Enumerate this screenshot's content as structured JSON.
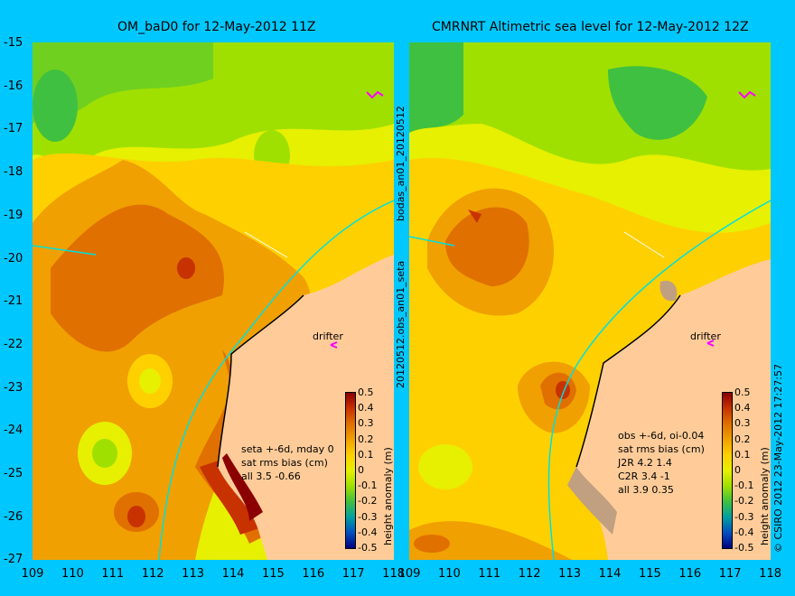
{
  "left_panel": {
    "title": "OM_baD0 for 12-May-2012 11Z",
    "stats": [
      "seta +-6d, mday 0",
      "sat rms bias (cm)",
      "all 3.5 -0.66"
    ],
    "drifter_label": "drifter"
  },
  "right_panel": {
    "title": "CMRNRT Altimetric sea level  for 12-May-2012 12Z",
    "stats": [
      "obs +-6d, oi-0.04",
      "sat rms bias (cm)",
      "J2R   4.2 1.4",
      "C2R   3.4 -1",
      "all 3.9 0.35"
    ],
    "drifter_label": "drifter"
  },
  "vertical_text": {
    "top": "bodas_an01_20120512",
    "bottom": "20120512.obs_an01_seta",
    "right": "© CSIRO 2012  23-May-2012 17:27:57"
  },
  "axes": {
    "y_ticks": [
      "-15",
      "-16",
      "-17",
      "-18",
      "-19",
      "-20",
      "-21",
      "-22",
      "-23",
      "-24",
      "-25",
      "-26",
      "-27"
    ],
    "x_ticks": [
      "109",
      "110",
      "111",
      "112",
      "113",
      "114",
      "115",
      "116",
      "117",
      "118"
    ]
  },
  "colorbar": {
    "title": "height anomaly (m)",
    "ticks": [
      "0.5",
      "0.4",
      "0.3",
      "0.2",
      "0.1",
      "0",
      "-0.1",
      "-0.2",
      "-0.3",
      "-0.4",
      "-0.5"
    ],
    "colors": [
      "#8b0000",
      "#c83200",
      "#e07000",
      "#f0a000",
      "#ffd000",
      "#e6f000",
      "#a0e000",
      "#40c040",
      "#00a0a0",
      "#0050c0",
      "#000080"
    ]
  },
  "colors": {
    "background": "#00c8ff",
    "land": "#ffcc99",
    "track": "#00e0e0"
  }
}
